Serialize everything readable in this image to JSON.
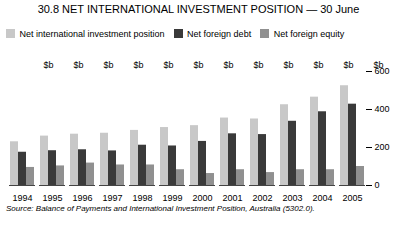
{
  "chart_data": {
    "type": "bar",
    "title": "30.8  NET INTERNATIONAL INVESTMENT POSITION — 30 June",
    "source": "Source:  Balance of Payments and International Investment Position, Australia (5302.0).",
    "ylabel": "$b",
    "categories": [
      "1994",
      "1995",
      "1996",
      "1997",
      "1998",
      "1999",
      "2000",
      "2001",
      "2002",
      "2003",
      "2004",
      "2005"
    ],
    "series": [
      {
        "name": "Net international investment position",
        "color": "#c8c8c8",
        "values": [
          230,
          260,
          270,
          275,
          290,
          305,
          315,
          355,
          350,
          425,
          465,
          525
        ]
      },
      {
        "name": "Net foreign debt",
        "color": "#3a3a3a",
        "values": [
          175,
          183,
          188,
          182,
          212,
          208,
          232,
          272,
          268,
          338,
          388,
          428
        ]
      },
      {
        "name": "Net foreign equity",
        "color": "#909090",
        "values": [
          95,
          103,
          118,
          108,
          108,
          83,
          63,
          83,
          68,
          83,
          83,
          100
        ]
      }
    ],
    "ylim": [
      0,
      600
    ],
    "yticks": [
      0,
      200,
      400,
      600
    ],
    "grid": false,
    "legend": "upper left"
  }
}
